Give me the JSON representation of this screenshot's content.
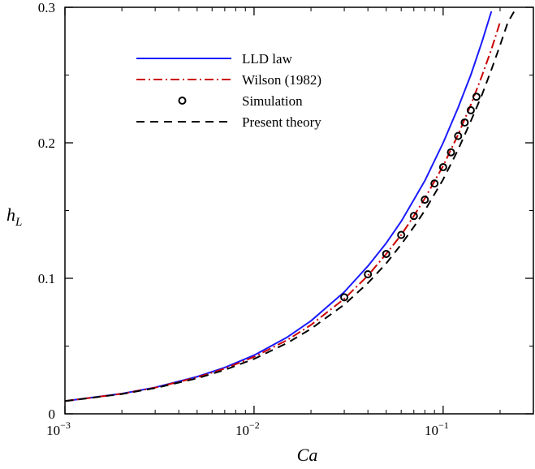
{
  "chart_data": {
    "type": "line",
    "xscale": "log",
    "xlim": [
      0.001,
      0.3
    ],
    "ylim": [
      0,
      0.3
    ],
    "xlabel": "Ca",
    "ylabel": "h_L",
    "xticks": [
      0.001,
      0.01,
      0.1
    ],
    "xtick_labels": [
      {
        "base": "10",
        "exp": "−3"
      },
      {
        "base": "10",
        "exp": "−2"
      },
      {
        "base": "10",
        "exp": "−1"
      }
    ],
    "yticks": [
      0,
      0.1,
      0.2,
      0.3
    ],
    "ytick_labels": [
      "0",
      "0.1",
      "0.2",
      "0.3"
    ],
    "legend_position": "upper-left",
    "series": [
      {
        "name": "LLD law",
        "style": "solid",
        "color": "#1a1aff",
        "x": [
          0.001,
          0.002,
          0.003,
          0.005,
          0.007,
          0.01,
          0.015,
          0.02,
          0.03,
          0.04,
          0.05,
          0.06,
          0.07,
          0.08,
          0.1,
          0.12,
          0.14,
          0.16,
          0.18
        ],
        "y": [
          0.0094,
          0.0149,
          0.0195,
          0.0274,
          0.0342,
          0.0432,
          0.0566,
          0.0686,
          0.0899,
          0.109,
          0.126,
          0.142,
          0.158,
          0.172,
          0.2,
          0.226,
          0.25,
          0.274,
          0.297
        ]
      },
      {
        "name": "Wilson (1982)",
        "style": "dashdot",
        "color": "#cc0000",
        "x": [
          0.001,
          0.002,
          0.003,
          0.005,
          0.007,
          0.01,
          0.015,
          0.02,
          0.03,
          0.04,
          0.05,
          0.06,
          0.07,
          0.08,
          0.1,
          0.12,
          0.14,
          0.16,
          0.18,
          0.2
        ],
        "y": [
          0.0094,
          0.0148,
          0.0193,
          0.0269,
          0.0334,
          0.042,
          0.0545,
          0.0656,
          0.0849,
          0.102,
          0.118,
          0.132,
          0.146,
          0.159,
          0.183,
          0.206,
          0.228,
          0.249,
          0.269,
          0.289
        ]
      },
      {
        "name": "Simulation",
        "style": "markers",
        "color": "#000000",
        "x": [
          0.03,
          0.04,
          0.05,
          0.06,
          0.07,
          0.08,
          0.09,
          0.1,
          0.11,
          0.12,
          0.13,
          0.14,
          0.15
        ],
        "y": [
          0.086,
          0.103,
          0.118,
          0.132,
          0.146,
          0.158,
          0.17,
          0.182,
          0.193,
          0.205,
          0.215,
          0.224,
          0.234
        ]
      },
      {
        "name": "Present theory",
        "style": "dashed",
        "color": "#000000",
        "x": [
          0.001,
          0.002,
          0.003,
          0.005,
          0.007,
          0.01,
          0.015,
          0.02,
          0.03,
          0.04,
          0.05,
          0.06,
          0.07,
          0.08,
          0.1,
          0.12,
          0.14,
          0.16,
          0.18,
          0.2,
          0.22,
          0.24
        ],
        "y": [
          0.0094,
          0.0146,
          0.019,
          0.0262,
          0.0324,
          0.0405,
          0.0523,
          0.0627,
          0.0806,
          0.0965,
          0.111,
          0.125,
          0.138,
          0.15,
          0.173,
          0.195,
          0.216,
          0.235,
          0.254,
          0.272,
          0.289,
          0.298
        ]
      }
    ]
  }
}
